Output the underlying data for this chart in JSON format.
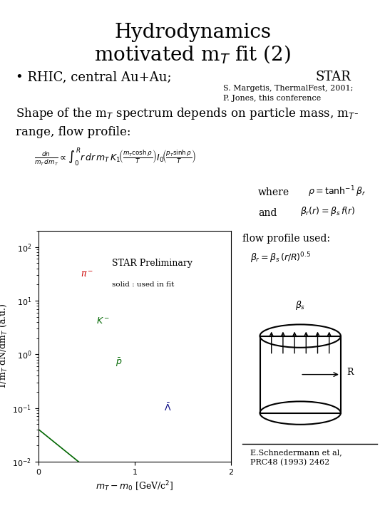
{
  "title_line1": "Hydrodynamics",
  "title_line2": "motivated m$_{T}$ fit (2)",
  "bullet": "RHIC, central Au+Au;",
  "star_label": "STAR",
  "ref1": "S. Margetis, ThermalFest, 2001;",
  "ref2": "P. Jones, this conference",
  "shape_text": "Shape of the m$_{T}$ spectrum depends on particle mass, m$_{T}$-\nrange, flow profile:",
  "star_preliminary": "STAR Preliminary",
  "solid_label": "solid : used in fit",
  "where_text": "where",
  "and_text": "and",
  "flow_profile_text": "flow profile used:",
  "xlabel": "$m_{T}- m_{0}$ [GeV/c$^{2}$]",
  "ylabel": "1/m$_{T}$ dN/dm$_{T}$ (a.u.)",
  "cite": "E.Schnedermann et al,\nPRC48 (1993) 2462",
  "bg_color": "#ffffff",
  "text_color": "#000000",
  "plot_bg": "#ffffff",
  "pi_color": "#cc0000",
  "K_color": "#006600",
  "p_color": "#006600",
  "Lambda_color": "#000080",
  "fit_color": "#000000"
}
